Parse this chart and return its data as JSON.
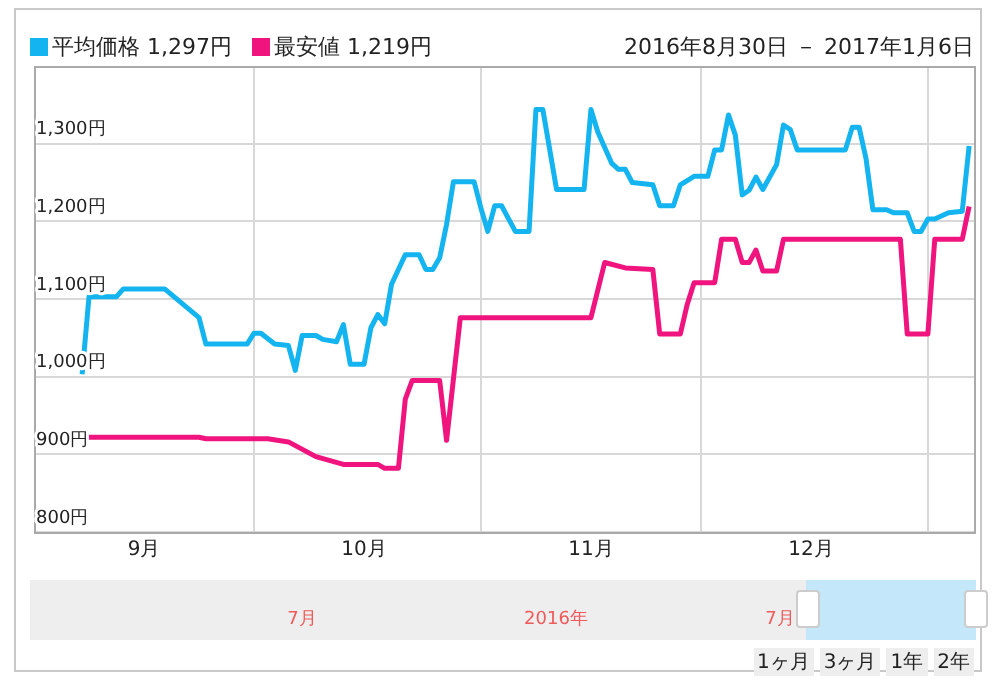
{
  "chart_data": {
    "type": "line",
    "subtitle": "2016年8月30日 － 2017年1月6日",
    "legend": "top left",
    "grid": true,
    "marker": "none",
    "line_style": "solid",
    "xlim": [
      "2016-08-23",
      "2017-01-07"
    ],
    "xticks": [
      {
        "value": "2016-09-08",
        "label": "9月"
      },
      {
        "value": "2016-09-24",
        "label": null
      },
      {
        "value": "2016-10-10",
        "label": "10月"
      },
      {
        "value": "2016-10-27",
        "label": null
      },
      {
        "value": "2016-11-12",
        "label": "11月"
      },
      {
        "value": "2016-11-28",
        "label": null
      },
      {
        "value": "2016-12-14",
        "label": "12月"
      },
      {
        "value": "2016-12-31",
        "label": null
      }
    ],
    "ylim": [
      800,
      1400
    ],
    "yticks": [
      {
        "value": 800,
        "label": "800円"
      },
      {
        "value": 900,
        "label": "900円"
      },
      {
        "value": 1000,
        "label": "1,000円"
      },
      {
        "value": 1100,
        "label": "1,100円"
      },
      {
        "value": 1200,
        "label": "1,200円"
      },
      {
        "value": 1300,
        "label": "1,300円"
      }
    ],
    "series": [
      {
        "name": "平均価格 1,297円",
        "color": "#14b4f0",
        "x": [
          "2016-08-30",
          "2016-08-31",
          "2016-09-04",
          "2016-09-05",
          "2016-09-11",
          "2016-09-16",
          "2016-09-17",
          "2016-09-23",
          "2016-09-24",
          "2016-09-25",
          "2016-09-27",
          "2016-09-29",
          "2016-09-30",
          "2016-10-01",
          "2016-10-03",
          "2016-10-04",
          "2016-10-06",
          "2016-10-07",
          "2016-10-08",
          "2016-10-10",
          "2016-10-11",
          "2016-10-12",
          "2016-10-13",
          "2016-10-14",
          "2016-10-16",
          "2016-10-18",
          "2016-10-19",
          "2016-10-20",
          "2016-10-21",
          "2016-10-22",
          "2016-10-23",
          "2016-10-26",
          "2016-10-27",
          "2016-10-28",
          "2016-10-29",
          "2016-10-30",
          "2016-11-01",
          "2016-11-03",
          "2016-11-04",
          "2016-11-05",
          "2016-11-07",
          "2016-11-11",
          "2016-11-12",
          "2016-11-13",
          "2016-11-15",
          "2016-11-16",
          "2016-11-17",
          "2016-11-18",
          "2016-11-21",
          "2016-11-22",
          "2016-11-24",
          "2016-11-25",
          "2016-11-27",
          "2016-11-29",
          "2016-11-30",
          "2016-12-01",
          "2016-12-02",
          "2016-12-03",
          "2016-12-04",
          "2016-12-05",
          "2016-12-06",
          "2016-12-07",
          "2016-12-09",
          "2016-12-10",
          "2016-12-11",
          "2016-12-12",
          "2016-12-19",
          "2016-12-20",
          "2016-12-21",
          "2016-12-22",
          "2016-12-23",
          "2016-12-25",
          "2016-12-26",
          "2016-12-28",
          "2016-12-29",
          "2016-12-30",
          "2016-12-31",
          "2017-01-01",
          "2017-01-03",
          "2017-01-05",
          "2017-01-06"
        ],
        "values": [
          1003,
          1103,
          1103,
          1113,
          1113,
          1076,
          1042,
          1042,
          1056,
          1056,
          1042,
          1040,
          1008,
          1053,
          1053,
          1048,
          1045,
          1067,
          1016,
          1016,
          1063,
          1080,
          1068,
          1119,
          1157,
          1157,
          1138,
          1138,
          1153,
          1196,
          1251,
          1251,
          1217,
          1187,
          1220,
          1220,
          1187,
          1187,
          1344,
          1344,
          1241,
          1241,
          1344,
          1315,
          1275,
          1267,
          1267,
          1250,
          1247,
          1220,
          1220,
          1247,
          1258,
          1258,
          1292,
          1292,
          1337,
          1311,
          1234,
          1240,
          1257,
          1241,
          1273,
          1324,
          1318,
          1292,
          1292,
          1321,
          1321,
          1281,
          1215,
          1215,
          1211,
          1211,
          1187,
          1187,
          1203,
          1203,
          1211,
          1213,
          1297
        ]
      },
      {
        "name": "最安値 1,219円",
        "color": "#f0147f",
        "x": [
          "2016-08-30",
          "2016-09-16",
          "2016-09-17",
          "2016-09-26",
          "2016-09-29",
          "2016-10-03",
          "2016-10-07",
          "2016-10-12",
          "2016-10-13",
          "2016-10-15",
          "2016-10-16",
          "2016-10-17",
          "2016-10-21",
          "2016-10-22",
          "2016-10-24",
          "2016-11-12",
          "2016-11-14",
          "2016-11-17",
          "2016-11-21",
          "2016-11-22",
          "2016-11-25",
          "2016-11-26",
          "2016-11-27",
          "2016-11-30",
          "2016-12-01",
          "2016-12-03",
          "2016-12-04",
          "2016-12-05",
          "2016-12-06",
          "2016-12-07",
          "2016-12-09",
          "2016-12-10",
          "2016-12-27",
          "2016-12-28",
          "2016-12-31",
          "2017-01-01",
          "2017-01-05",
          "2017-01-06"
        ],
        "values": [
          922,
          922,
          920,
          920,
          916,
          897,
          887,
          887,
          882,
          882,
          971,
          995,
          995,
          918,
          1076,
          1076,
          1147,
          1140,
          1138,
          1055,
          1055,
          1093,
          1121,
          1121,
          1177,
          1177,
          1147,
          1147,
          1163,
          1136,
          1136,
          1177,
          1177,
          1055,
          1055,
          1177,
          1177,
          1219
        ]
      }
    ],
    "annotations": [
      "7月",
      "2016年",
      "7月",
      "1ヶ月",
      "3ヶ月",
      "1年",
      "2年"
    ]
  }
}
